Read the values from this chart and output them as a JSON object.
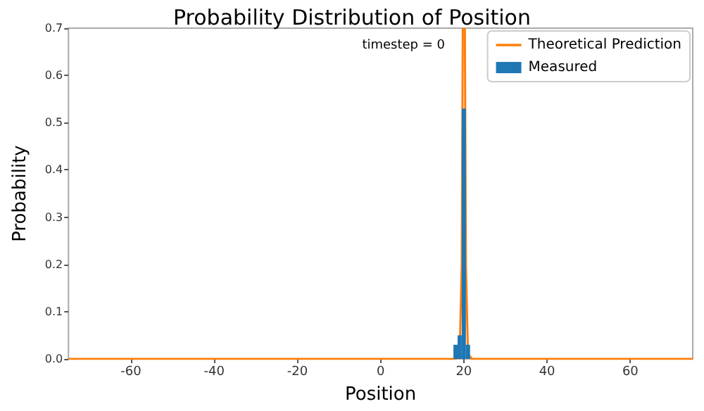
{
  "chart_data": {
    "type": "histogram",
    "title": "Probability Distribution of Position",
    "xlabel": "Position",
    "ylabel": "Probability",
    "annotations": [
      "timestep = 0"
    ],
    "series": [
      {
        "name": "Theoretical Prediction",
        "type": "line",
        "color": "#ff7f0e",
        "x": [
          -75,
          18,
          19,
          19.5,
          19.75,
          null,
          20.25,
          20.5,
          21,
          22,
          75
        ],
        "values": [
          0,
          0,
          0.01,
          0.2,
          0.7,
          null,
          0.7,
          0.2,
          0.01,
          0,
          0
        ]
      },
      {
        "name": "Measured",
        "type": "histogram",
        "color": "#1f77b4",
        "bins": [
          17.5,
          18.5,
          19.5,
          20.5,
          21.5
        ],
        "values": [
          0.03,
          0.05,
          0.53,
          0.03
        ]
      }
    ],
    "xlim": [
      -75,
      75
    ],
    "xticks": [
      -60,
      -40,
      -20,
      0,
      20,
      40,
      60
    ],
    "ylim": [
      0,
      0.7
    ],
    "yticks": [
      {
        "value": 0,
        "label": "0.0"
      },
      {
        "value": 0.1,
        "label": "0.1"
      },
      {
        "value": 0.2,
        "label": "0.2"
      },
      {
        "value": 0.3,
        "label": "0.3"
      },
      {
        "value": 0.4,
        "label": "0.4"
      },
      {
        "value": 0.5,
        "label": "0.5"
      },
      {
        "value": 0.6,
        "label": "0.6"
      },
      {
        "value": 0.7,
        "label": "0.7"
      }
    ],
    "legend": "top right",
    "grid": false
  }
}
